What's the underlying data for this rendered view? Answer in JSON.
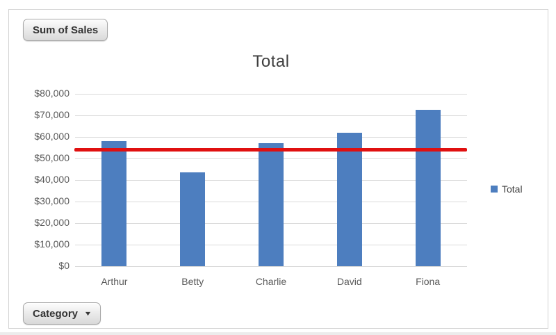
{
  "pivot_controls": {
    "value_field_button": "Sum of Sales",
    "axis_field_button": "Category",
    "dropdown_icon": "▼"
  },
  "chart_data": {
    "type": "bar",
    "title": "Total",
    "categories": [
      "Arthur",
      "Betty",
      "Charlie",
      "David",
      "Fiona"
    ],
    "series": [
      {
        "name": "Total",
        "values": [
          58000,
          43500,
          57000,
          62000,
          72500
        ]
      }
    ],
    "target_line": {
      "value": 54000,
      "color": "#e01010"
    },
    "ylim": [
      0,
      80000
    ],
    "ytick_step": 10000,
    "ytick_labels": [
      "$0",
      "$10,000",
      "$20,000",
      "$30,000",
      "$40,000",
      "$50,000",
      "$60,000",
      "$70,000",
      "$80,000"
    ],
    "xlabel": "",
    "ylabel": "",
    "grid": true,
    "legend": {
      "position": "right",
      "entries": [
        "Total"
      ]
    },
    "bar_color": "#4d7ebf",
    "grid_color": "#d9d9d9",
    "text_color": "#595959"
  }
}
